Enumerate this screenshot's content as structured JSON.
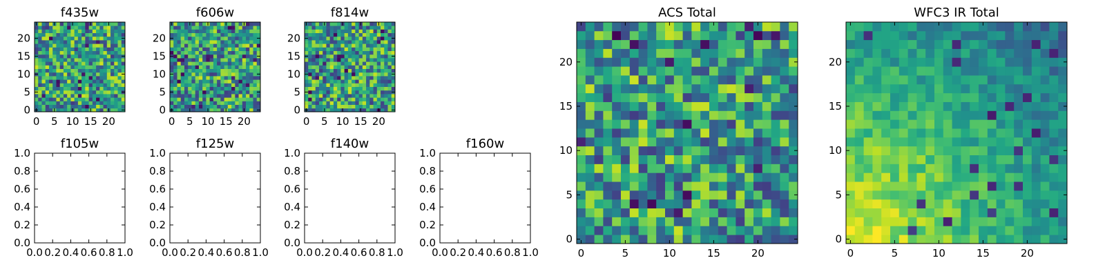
{
  "chart_data": [
    {
      "type": "heatmap",
      "title": "f435w",
      "xticks": [
        0,
        5,
        10,
        15,
        20
      ],
      "yticks": [
        0,
        5,
        10,
        15,
        20
      ],
      "xlim": [
        0,
        25
      ],
      "ylim": [
        0,
        25
      ],
      "grid_size": 25,
      "seed": 11,
      "colormap": "viridis",
      "style": "noise"
    },
    {
      "type": "heatmap",
      "title": "f606w",
      "xticks": [
        0,
        5,
        10,
        15,
        20
      ],
      "yticks": [
        0,
        5,
        10,
        15,
        20
      ],
      "xlim": [
        0,
        25
      ],
      "ylim": [
        0,
        25
      ],
      "grid_size": 25,
      "seed": 23,
      "colormap": "viridis",
      "style": "noise"
    },
    {
      "type": "heatmap",
      "title": "f814w",
      "xticks": [
        0,
        5,
        10,
        15,
        20
      ],
      "yticks": [
        0,
        5,
        10,
        15,
        20
      ],
      "xlim": [
        0,
        25
      ],
      "ylim": [
        0,
        25
      ],
      "grid_size": 25,
      "seed": 37,
      "colormap": "viridis",
      "style": "noise"
    },
    {
      "type": "empty",
      "title": "f105w",
      "xticks": [
        "0.0",
        "0.2",
        "0.4",
        "0.6",
        "0.8",
        "1.0"
      ],
      "yticks": [
        "0.0",
        "0.2",
        "0.4",
        "0.6",
        "0.8",
        "1.0"
      ],
      "xlim": [
        0,
        1
      ],
      "ylim": [
        0,
        1
      ]
    },
    {
      "type": "empty",
      "title": "f125w",
      "xticks": [
        "0.0",
        "0.2",
        "0.4",
        "0.6",
        "0.8",
        "1.0"
      ],
      "yticks": [
        "0.0",
        "0.2",
        "0.4",
        "0.6",
        "0.8",
        "1.0"
      ],
      "xlim": [
        0,
        1
      ],
      "ylim": [
        0,
        1
      ]
    },
    {
      "type": "empty",
      "title": "f140w",
      "xticks": [
        "0.0",
        "0.2",
        "0.4",
        "0.6",
        "0.8",
        "1.0"
      ],
      "yticks": [
        "0.0",
        "0.2",
        "0.4",
        "0.6",
        "0.8",
        "1.0"
      ],
      "xlim": [
        0,
        1
      ],
      "ylim": [
        0,
        1
      ]
    },
    {
      "type": "empty",
      "title": "f160w",
      "xticks": [
        "0.0",
        "0.2",
        "0.4",
        "0.6",
        "0.8",
        "1.0"
      ],
      "yticks": [
        "0.0",
        "0.2",
        "0.4",
        "0.6",
        "0.8",
        "1.0"
      ],
      "xlim": [
        0,
        1
      ],
      "ylim": [
        0,
        1
      ]
    },
    {
      "type": "heatmap",
      "title": "ACS Total",
      "xticks": [
        0,
        5,
        10,
        15,
        20
      ],
      "yticks": [
        0,
        5,
        10,
        15,
        20
      ],
      "xlim": [
        0,
        25
      ],
      "ylim": [
        0,
        25
      ],
      "grid_size": 25,
      "seed": 53,
      "colormap": "viridis",
      "style": "noise"
    },
    {
      "type": "heatmap",
      "title": "WFC3 IR Total",
      "xticks": [
        0,
        5,
        10,
        15,
        20
      ],
      "yticks": [
        0,
        5,
        10,
        15,
        20
      ],
      "xlim": [
        0,
        25
      ],
      "ylim": [
        0,
        25
      ],
      "grid_size": 25,
      "seed": 71,
      "colormap": "viridis",
      "style": "gradient"
    }
  ]
}
